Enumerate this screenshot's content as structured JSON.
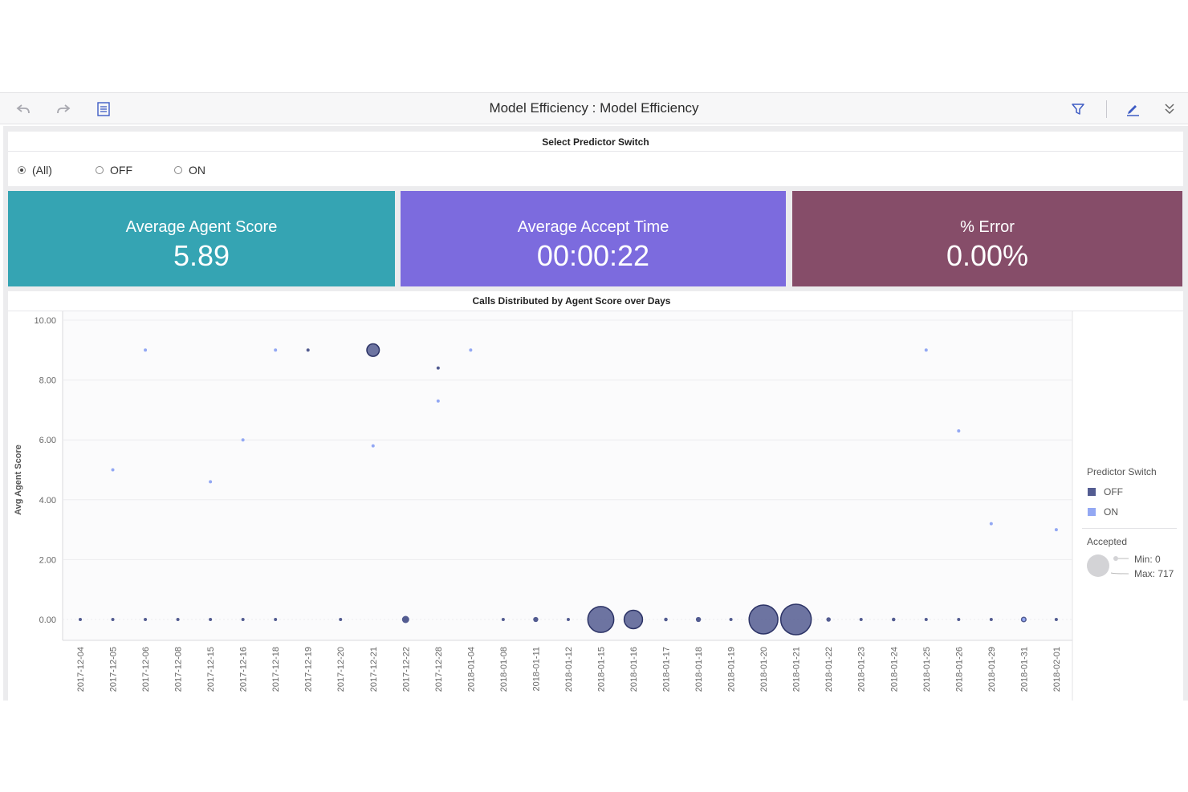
{
  "toolbar": {
    "title": "Model Efficiency : Model Efficiency",
    "icons": [
      "undo-icon",
      "redo-icon",
      "contents-icon",
      "filter-icon",
      "edit-icon",
      "collapse-icon"
    ]
  },
  "filter": {
    "title": "Select Predictor Switch",
    "options": [
      {
        "label": "(All)",
        "selected": true
      },
      {
        "label": "OFF",
        "selected": false
      },
      {
        "label": "ON",
        "selected": false
      }
    ]
  },
  "kpis": [
    {
      "label": "Average Agent Score",
      "value": "5.89",
      "color": "#35a4b3"
    },
    {
      "label": "Average Accept Time",
      "value": "00:00:22",
      "color": "#7c6bde"
    },
    {
      "label": "% Error",
      "value": "0.00%",
      "color": "#864d69"
    }
  ],
  "legend": {
    "color_title": "Predictor Switch",
    "items": [
      {
        "label": "OFF",
        "color": "#535c91"
      },
      {
        "label": "ON",
        "color": "#93a8f3"
      }
    ],
    "size_title": "Accepted",
    "size_min": "Min: 0",
    "size_max": "Max: 717"
  },
  "chart_data": {
    "type": "scatter",
    "title": "Calls Distributed by Agent Score over Days",
    "xlabel": "",
    "ylabel": "Avg Agent Score",
    "ylim": [
      0,
      10
    ],
    "yticks": [
      "0.00",
      "2.00",
      "4.00",
      "6.00",
      "8.00",
      "10.00"
    ],
    "grid": true,
    "legend_position": "right",
    "size_by": "Accepted",
    "size_range": [
      0,
      717
    ],
    "categories": [
      "2017-12-04",
      "2017-12-05",
      "2017-12-06",
      "2017-12-08",
      "2017-12-15",
      "2017-12-16",
      "2017-12-18",
      "2017-12-19",
      "2017-12-20",
      "2017-12-21",
      "2017-12-22",
      "2017-12-28",
      "2018-01-04",
      "2018-01-08",
      "2018-01-11",
      "2018-01-12",
      "2018-01-15",
      "2018-01-16",
      "2018-01-17",
      "2018-01-18",
      "2018-01-19",
      "2018-01-20",
      "2018-01-21",
      "2018-01-22",
      "2018-01-23",
      "2018-01-24",
      "2018-01-25",
      "2018-01-26",
      "2018-01-29",
      "2018-01-31",
      "2018-02-01"
    ],
    "series": [
      {
        "name": "OFF",
        "color": "#535c91",
        "points": [
          {
            "x": "2017-12-04",
            "y": 0,
            "size": 5
          },
          {
            "x": "2017-12-05",
            "y": 0,
            "size": 5
          },
          {
            "x": "2017-12-06",
            "y": 0,
            "size": 5
          },
          {
            "x": "2017-12-08",
            "y": 0,
            "size": 5
          },
          {
            "x": "2017-12-15",
            "y": 0,
            "size": 5
          },
          {
            "x": "2017-12-16",
            "y": 0,
            "size": 5
          },
          {
            "x": "2017-12-18",
            "y": 0,
            "size": 5
          },
          {
            "x": "2017-12-19",
            "y": 9,
            "size": 8
          },
          {
            "x": "2017-12-20",
            "y": 0,
            "size": 5
          },
          {
            "x": "2017-12-21",
            "y": 9,
            "size": 120
          },
          {
            "x": "2017-12-22",
            "y": 0,
            "size": 40
          },
          {
            "x": "2017-12-28",
            "y": 8.4,
            "size": 5
          },
          {
            "x": "2018-01-08",
            "y": 0,
            "size": 5
          },
          {
            "x": "2018-01-11",
            "y": 0,
            "size": 20
          },
          {
            "x": "2018-01-12",
            "y": 0,
            "size": 5
          },
          {
            "x": "2018-01-15",
            "y": 0,
            "size": 520
          },
          {
            "x": "2018-01-16",
            "y": 0,
            "size": 260
          },
          {
            "x": "2018-01-17",
            "y": 0,
            "size": 10
          },
          {
            "x": "2018-01-18",
            "y": 0,
            "size": 20
          },
          {
            "x": "2018-01-19",
            "y": 0,
            "size": 5
          },
          {
            "x": "2018-01-20",
            "y": 0,
            "size": 640
          },
          {
            "x": "2018-01-21",
            "y": 0,
            "size": 717
          },
          {
            "x": "2018-01-22",
            "y": 0,
            "size": 15
          },
          {
            "x": "2018-01-23",
            "y": 0,
            "size": 5
          },
          {
            "x": "2018-01-24",
            "y": 0,
            "size": 10
          },
          {
            "x": "2018-01-25",
            "y": 0,
            "size": 5
          },
          {
            "x": "2018-01-26",
            "y": 0,
            "size": 5
          },
          {
            "x": "2018-01-29",
            "y": 0,
            "size": 5
          },
          {
            "x": "2018-01-31",
            "y": 0,
            "size": 25
          },
          {
            "x": "2018-02-01",
            "y": 0,
            "size": 5
          }
        ]
      },
      {
        "name": "ON",
        "color": "#93a8f3",
        "points": [
          {
            "x": "2017-12-05",
            "y": 5.0,
            "size": 3
          },
          {
            "x": "2017-12-06",
            "y": 9.0,
            "size": 3
          },
          {
            "x": "2017-12-15",
            "y": 4.6,
            "size": 3
          },
          {
            "x": "2017-12-16",
            "y": 6.0,
            "size": 3
          },
          {
            "x": "2017-12-18",
            "y": 9.0,
            "size": 3
          },
          {
            "x": "2017-12-21",
            "y": 5.8,
            "size": 3
          },
          {
            "x": "2017-12-28",
            "y": 7.3,
            "size": 3
          },
          {
            "x": "2018-01-04",
            "y": 9.0,
            "size": 3
          },
          {
            "x": "2018-01-25",
            "y": 9.0,
            "size": 3
          },
          {
            "x": "2018-01-26",
            "y": 6.3,
            "size": 3
          },
          {
            "x": "2018-01-29",
            "y": 3.2,
            "size": 3
          },
          {
            "x": "2018-01-31",
            "y": 0,
            "size": 3
          },
          {
            "x": "2018-02-01",
            "y": 3.0,
            "size": 3
          }
        ]
      }
    ]
  }
}
